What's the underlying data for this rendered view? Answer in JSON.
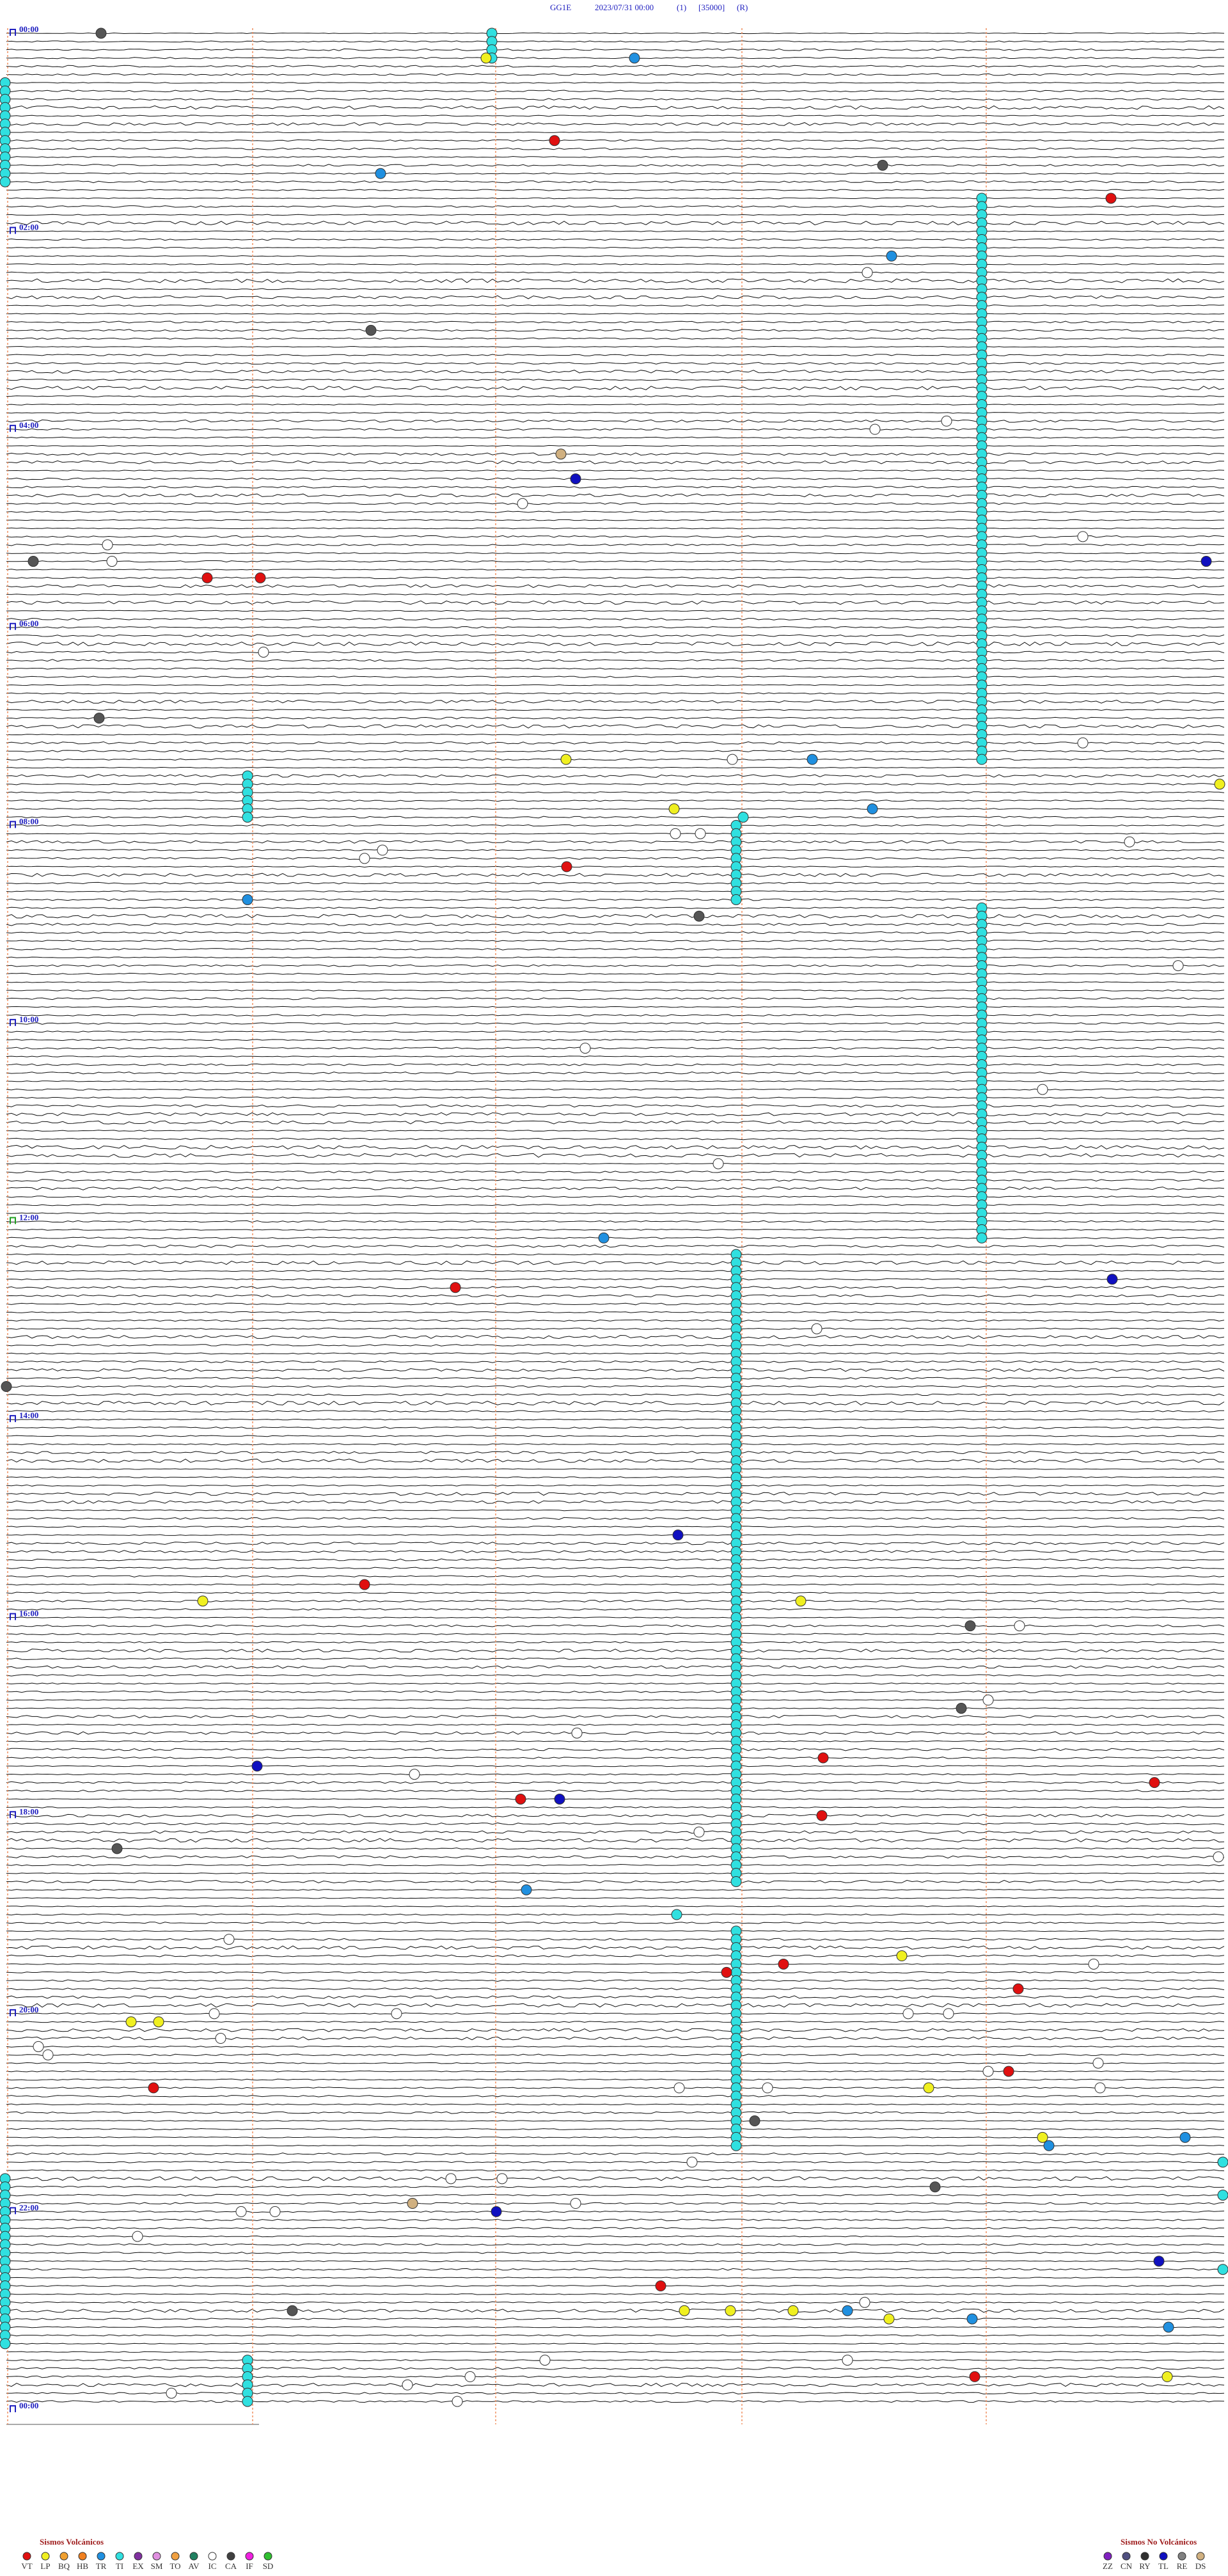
{
  "header": {
    "station": "GG1E",
    "datetime": "2023/07/31 00:00",
    "channel": "(1)",
    "scale": "[35000]",
    "mode": "(R)"
  },
  "time_labels": [
    "00:00",
    "02:00",
    "04:00",
    "06:00",
    "08:00",
    "10:00",
    "12:00",
    "14:00",
    "16:00",
    "18:00",
    "20:00",
    "22:00",
    "00:00"
  ],
  "legend_volcanic": {
    "title": "Sismos Volcánicos",
    "items": [
      {
        "code": "VT",
        "color": "#e01010"
      },
      {
        "code": "LP",
        "color": "#f0f020"
      },
      {
        "code": "BQ",
        "color": "#f0a030"
      },
      {
        "code": "HB",
        "color": "#f08020"
      },
      {
        "code": "TR",
        "color": "#2090e0"
      },
      {
        "code": "TI",
        "color": "#30e0e0"
      },
      {
        "code": "EX",
        "color": "#8030a0"
      },
      {
        "code": "SM",
        "color": "#e090e0"
      },
      {
        "code": "TO",
        "color": "#f0a040"
      },
      {
        "code": "AV",
        "color": "#208060"
      },
      {
        "code": "IC",
        "color": "#ffffff"
      },
      {
        "code": "CA",
        "color": "#404040"
      },
      {
        "code": "IF",
        "color": "#f020e0"
      },
      {
        "code": "SD",
        "color": "#30c030"
      }
    ]
  },
  "legend_nonvolcanic": {
    "title": "Sismos No Volcánicos",
    "items": [
      {
        "code": "ZZ",
        "color": "#8020c0"
      },
      {
        "code": "CN",
        "color": "#505080"
      },
      {
        "code": "RY",
        "color": "#303030"
      },
      {
        "code": "TL",
        "color": "#1010c0"
      },
      {
        "code": "RE",
        "color": "#808080"
      },
      {
        "code": "DS",
        "color": "#d0b080"
      }
    ]
  }
}
